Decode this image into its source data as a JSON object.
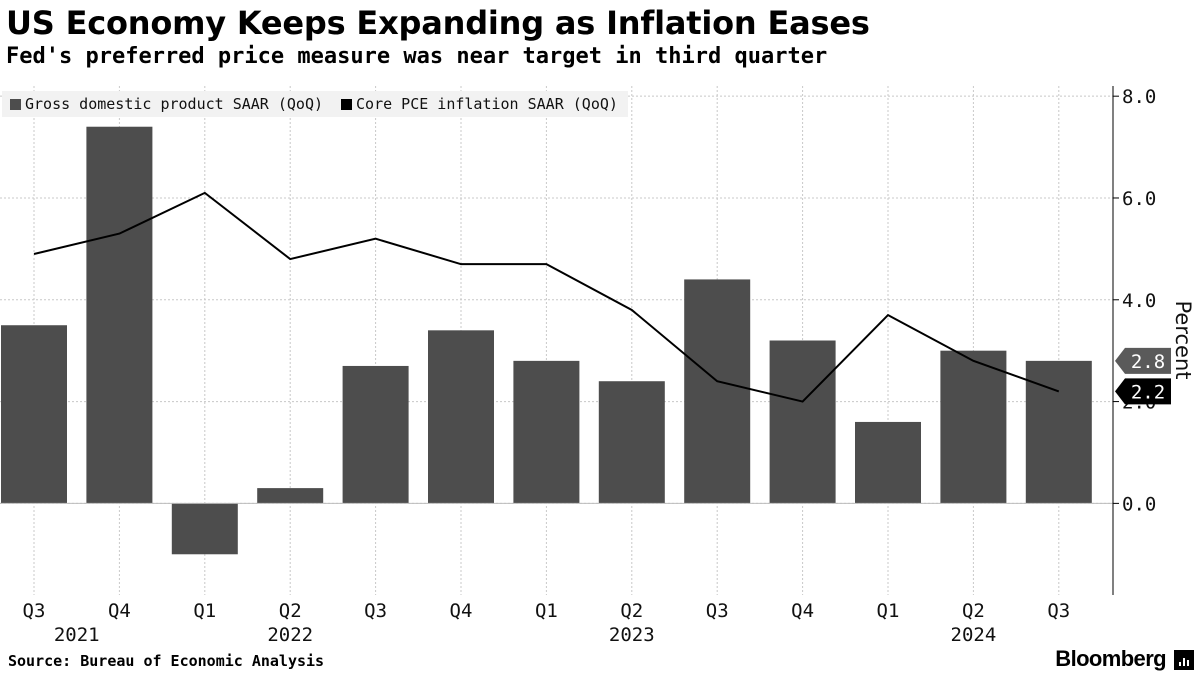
{
  "title": "US Economy Keeps Expanding as Inflation Eases",
  "subtitle": "Fed's preferred price measure was near target in third quarter",
  "source": "Source: Bureau of Economic Analysis",
  "brand": "Bloomberg",
  "legend": {
    "gdp": {
      "label": "Gross domestic product SAAR (QoQ)",
      "color": "#4d4d4d"
    },
    "pce": {
      "label": "Core PCE inflation SAAR (QoQ)",
      "color": "#000000"
    }
  },
  "chart_data": {
    "type": "bar",
    "categories": [
      "Q3",
      "Q4",
      "Q1",
      "Q2",
      "Q3",
      "Q4",
      "Q1",
      "Q2",
      "Q3",
      "Q4",
      "Q1",
      "Q2",
      "Q3"
    ],
    "year_labels": [
      {
        "label": "2021",
        "category_index": 0.5
      },
      {
        "label": "2022",
        "category_index": 3
      },
      {
        "label": "2023",
        "category_index": 7
      },
      {
        "label": "2024",
        "category_index": 11
      }
    ],
    "series": [
      {
        "name": "Gross domestic product SAAR (QoQ)",
        "type": "bar",
        "color": "#4d4d4d",
        "values": [
          3.5,
          7.4,
          -1.0,
          0.3,
          2.7,
          3.4,
          2.8,
          2.4,
          4.4,
          3.2,
          1.6,
          3.0,
          2.8
        ]
      },
      {
        "name": "Core PCE inflation SAAR (QoQ)",
        "type": "line",
        "color": "#000000",
        "values": [
          4.9,
          5.3,
          6.1,
          4.8,
          5.2,
          4.7,
          4.7,
          3.8,
          2.4,
          2.0,
          3.7,
          2.8,
          2.2
        ]
      }
    ],
    "ylabel": "Percent",
    "y_ticks": [
      0.0,
      2.0,
      4.0,
      6.0,
      8.0
    ],
    "y_tick_labels": [
      "0.0",
      "2.0",
      "4.0",
      "6.0",
      "8.0"
    ],
    "ylim": [
      -1.8,
      8.2
    ],
    "end_labels": [
      {
        "series": "Gross domestic product SAAR (QoQ)",
        "label": "2.8",
        "value": 2.8
      },
      {
        "series": "Core PCE inflation SAAR (QoQ)",
        "label": "2.2",
        "value": 2.2
      }
    ],
    "grid": true,
    "y_axis_position": "right",
    "legend_position": "top-left"
  }
}
